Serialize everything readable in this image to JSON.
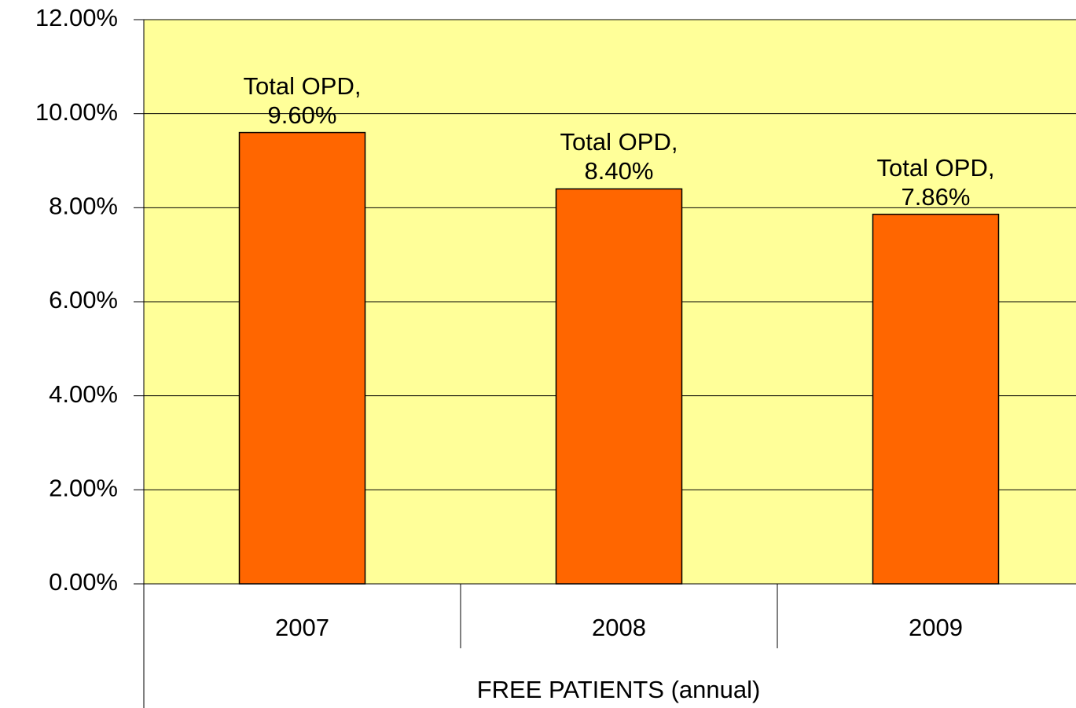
{
  "chart_data": {
    "type": "bar",
    "x_label": "FREE PATIENTS (annual)",
    "categories": [
      "2007",
      "2008",
      "2009"
    ],
    "series": [
      {
        "name": "Total OPD",
        "color": "#ff6600",
        "values": [
          9.6,
          8.4,
          7.86
        ],
        "value_labels": [
          "Total OPD,\n9.60%",
          "Total OPD,\n8.40%",
          "Total OPD,\n7.86%"
        ]
      }
    ],
    "ylim": [
      0,
      12
    ],
    "yticks": [
      {
        "value": 0,
        "label": "0.00%"
      },
      {
        "value": 2,
        "label": "2.00%"
      },
      {
        "value": 4,
        "label": "4.00%"
      },
      {
        "value": 6,
        "label": "6.00%"
      },
      {
        "value": 8,
        "label": "8.00%"
      },
      {
        "value": 10,
        "label": "10.00%"
      },
      {
        "value": 12,
        "label": "12.00%"
      }
    ],
    "grid": true,
    "plot_background": "#ffff99"
  }
}
